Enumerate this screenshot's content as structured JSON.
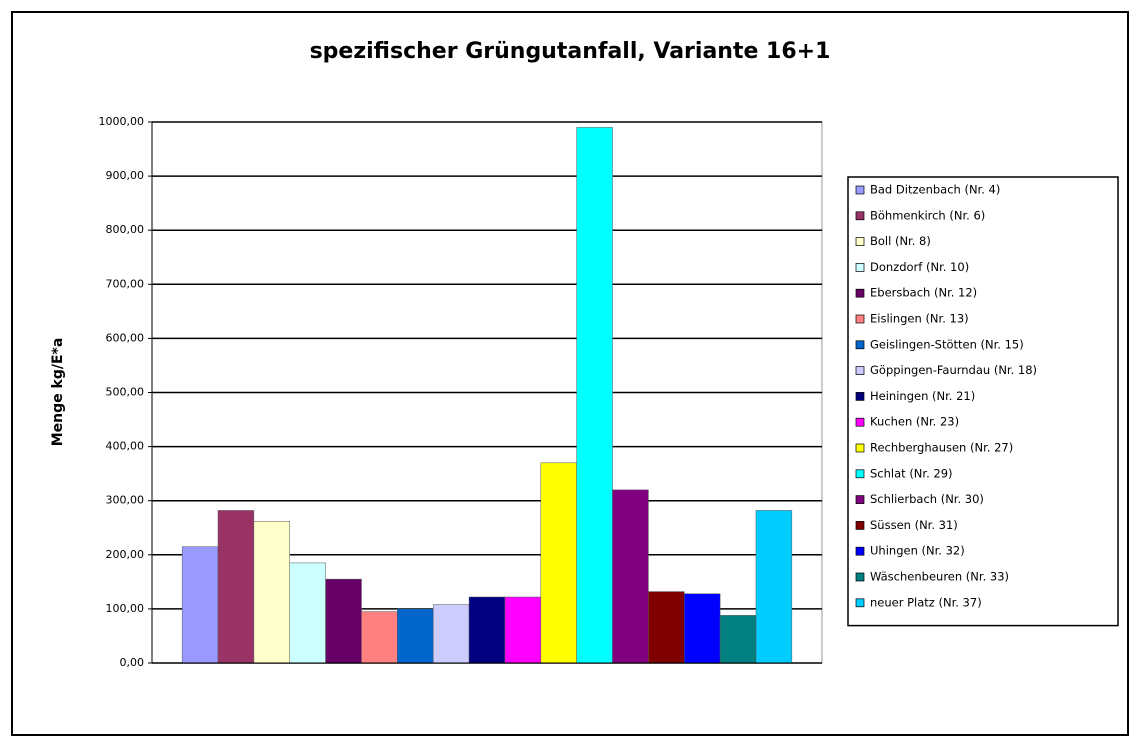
{
  "chart_data": {
    "type": "bar",
    "title": "spezifischer Grüngutanfall, Variante 16+1",
    "y_label": "Menge kg/E*a",
    "categories": [
      null
    ],
    "series": [
      {
        "name": "Bad Ditzenbach (Nr. 4)",
        "color": "#9999ff",
        "values": [
          215
        ]
      },
      {
        "name": "Böhmenkirch (Nr. 6)",
        "color": "#993366",
        "values": [
          282
        ]
      },
      {
        "name": "Boll (Nr. 8)",
        "color": "#ffffcc",
        "values": [
          262
        ]
      },
      {
        "name": "Donzdorf (Nr. 10)",
        "color": "#ccffff",
        "values": [
          185
        ]
      },
      {
        "name": "Ebersbach (Nr. 12)",
        "color": "#660066",
        "values": [
          155
        ]
      },
      {
        "name": "Eislingen (Nr. 13)",
        "color": "#ff8080",
        "values": [
          95
        ]
      },
      {
        "name": "Geislingen-Stötten (Nr. 15)",
        "color": "#0066cc",
        "values": [
          100
        ]
      },
      {
        "name": "Göppingen-Faurndau (Nr. 18)",
        "color": "#ccccff",
        "values": [
          108
        ]
      },
      {
        "name": "Heiningen (Nr. 21)",
        "color": "#000080",
        "values": [
          122
        ]
      },
      {
        "name": "Kuchen (Nr. 23)",
        "color": "#ff00ff",
        "values": [
          122
        ]
      },
      {
        "name": "Rechberghausen (Nr. 27)",
        "color": "#ffff00",
        "values": [
          370
        ]
      },
      {
        "name": "Schlat (Nr. 29)",
        "color": "#00ffff",
        "values": [
          990
        ]
      },
      {
        "name": "Schlierbach (Nr. 30)",
        "color": "#800080",
        "values": [
          320
        ]
      },
      {
        "name": "Süssen (Nr. 31)",
        "color": "#800000",
        "values": [
          132
        ]
      },
      {
        "name": "Uhingen (Nr. 32)",
        "color": "#0000ff",
        "values": [
          128
        ]
      },
      {
        "name": "Wäschenbeuren (Nr. 33)",
        "color": "#008080",
        "values": [
          88
        ]
      },
      {
        "name": "neuer Platz (Nr. 37)",
        "color": "#00ccff",
        "values": [
          282
        ]
      }
    ],
    "ylim": [
      0,
      1000
    ],
    "yticks": [
      {
        "value": 0,
        "label": "0,00"
      },
      {
        "value": 100,
        "label": "100,00"
      },
      {
        "value": 200,
        "label": "200,00"
      },
      {
        "value": 300,
        "label": "300,00"
      },
      {
        "value": 400,
        "label": "400,00"
      },
      {
        "value": 500,
        "label": "500,00"
      },
      {
        "value": 600,
        "label": "600,00"
      },
      {
        "value": 700,
        "label": "700,00"
      },
      {
        "value": 800,
        "label": "800,00"
      },
      {
        "value": 900,
        "label": "900,00"
      },
      {
        "value": 1000,
        "label": "1000,00"
      }
    ],
    "grid": true,
    "legend": "right"
  }
}
